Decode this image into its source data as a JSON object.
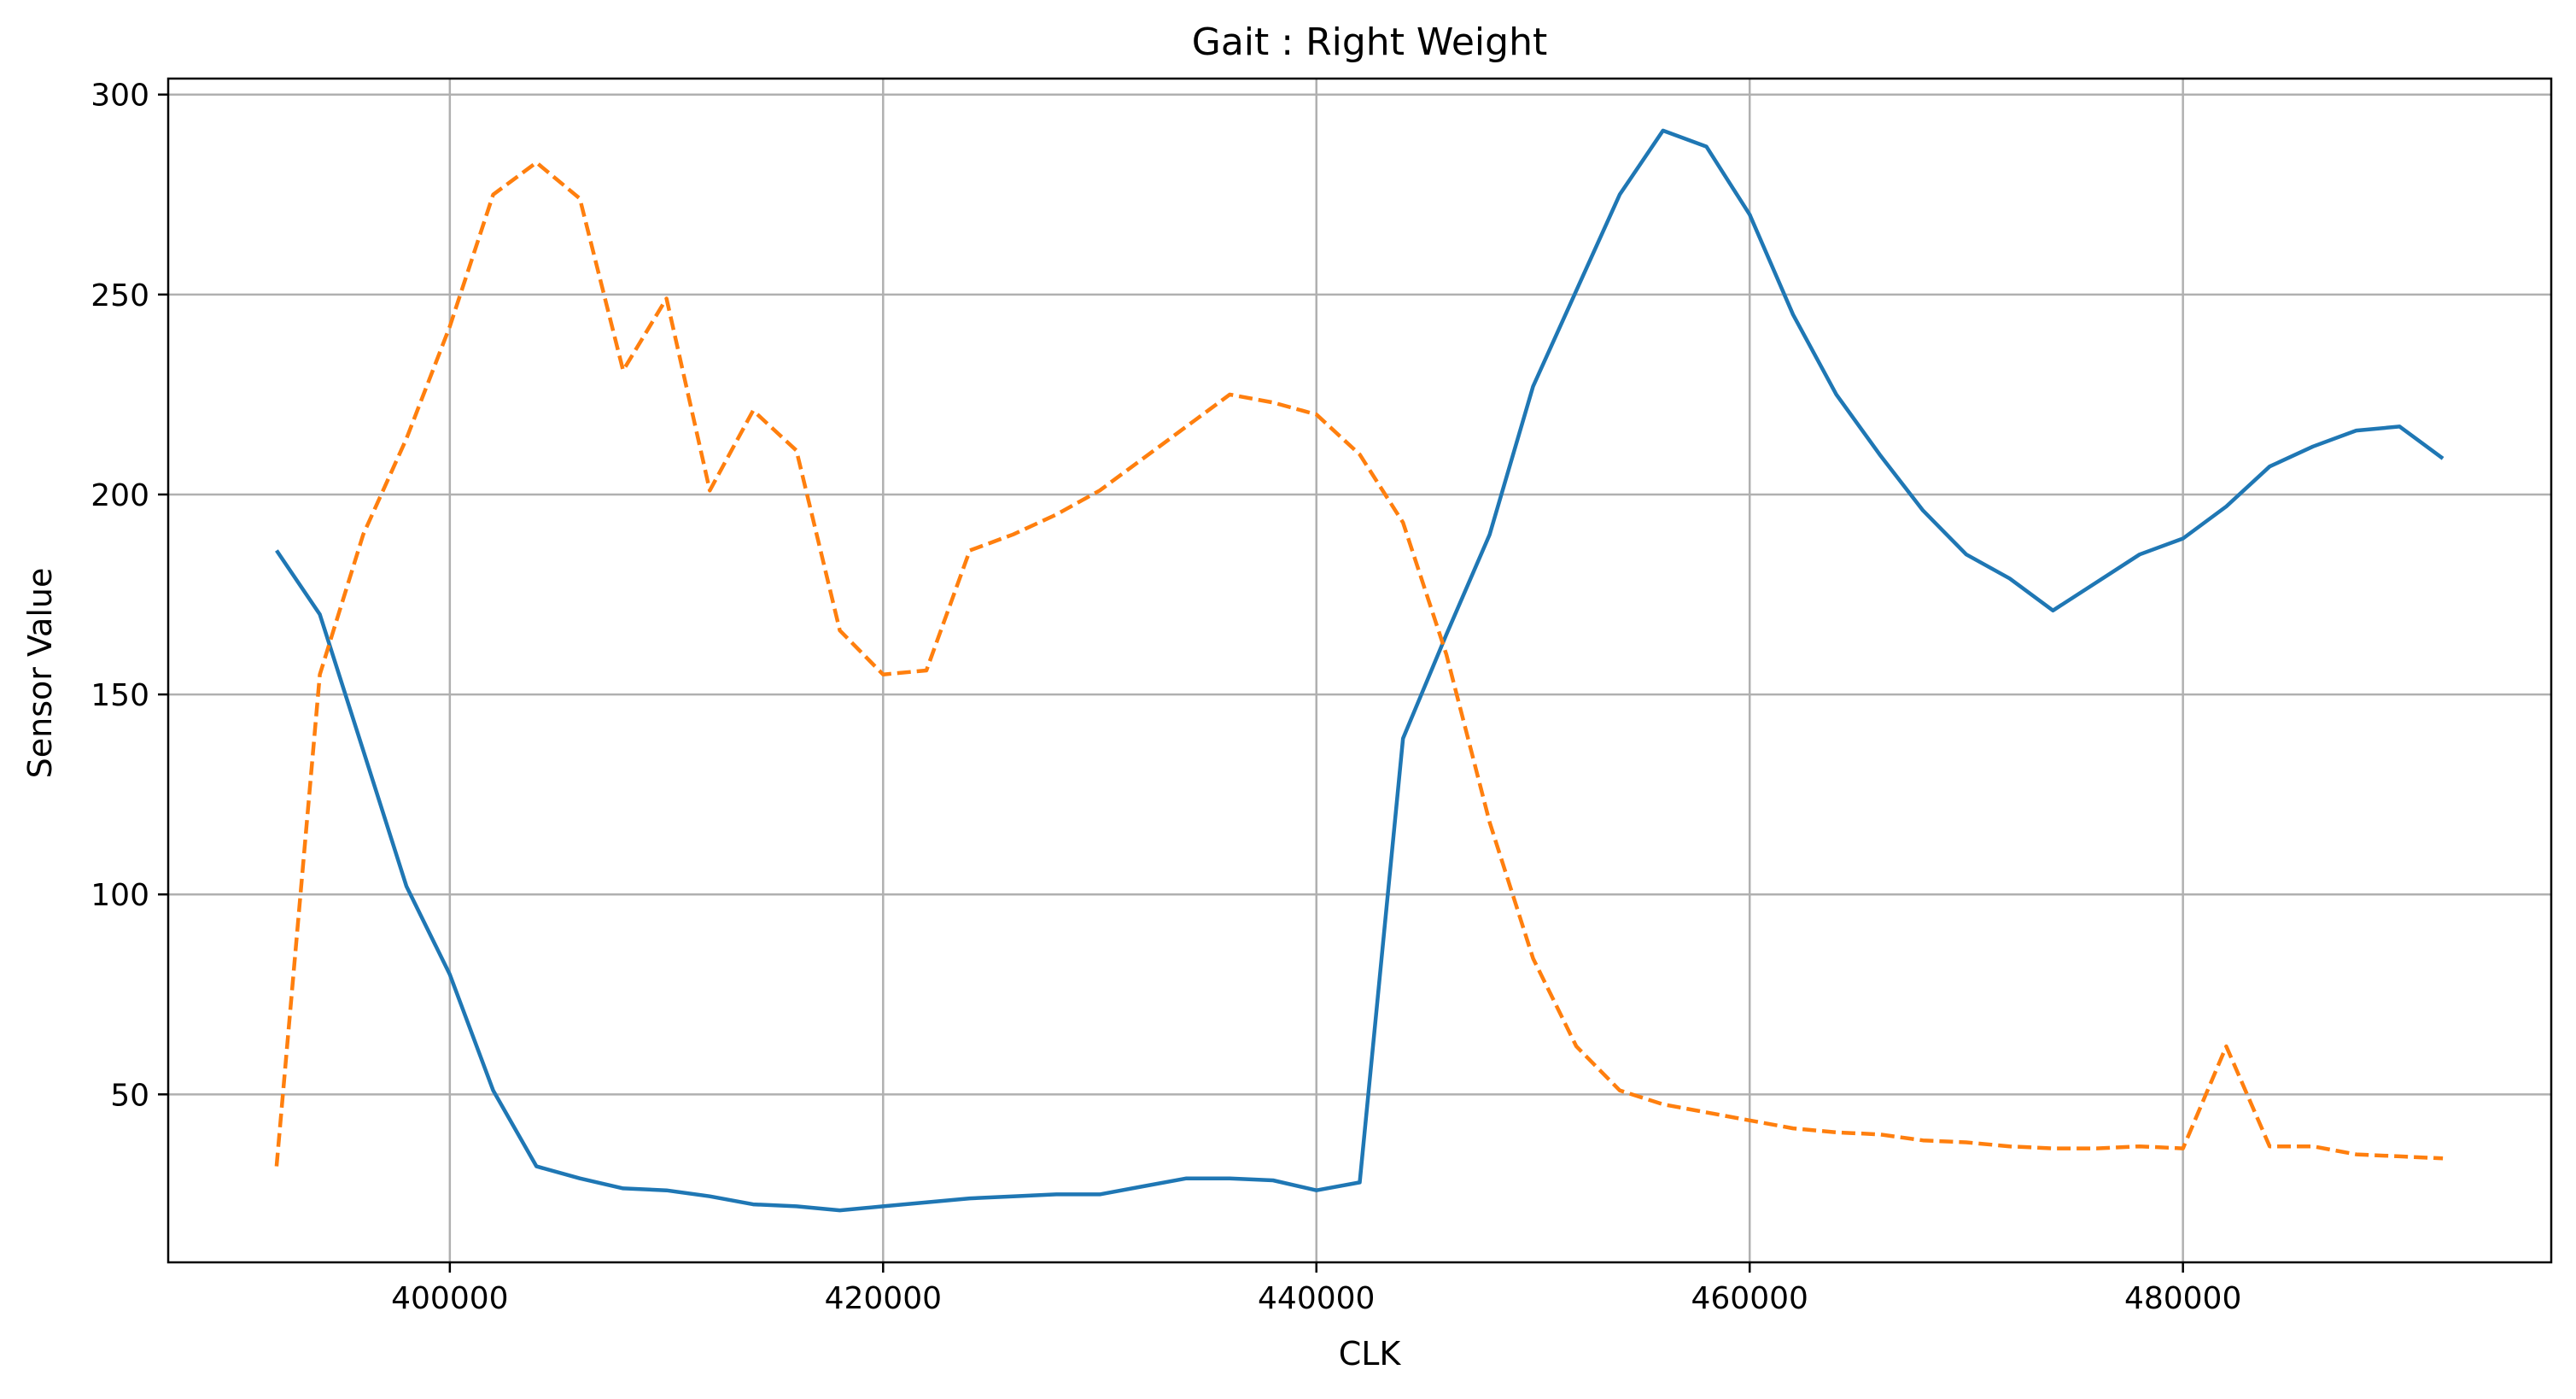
{
  "chart_data": {
    "type": "line",
    "title": "Gait : Right Weight",
    "xlabel": "CLK",
    "ylabel": "Sensor Value",
    "xlim": [
      387000,
      497000
    ],
    "ylim": [
      8,
      304
    ],
    "grid": true,
    "x_ticks": [
      400000,
      420000,
      440000,
      460000,
      480000
    ],
    "y_ticks": [
      50,
      100,
      150,
      200,
      250,
      300
    ],
    "series": [
      {
        "color": "#1f77b4",
        "style": "solid",
        "x": [
          392000,
          394000,
          396000,
          398000,
          400000,
          402000,
          404000,
          406000,
          408000,
          410000,
          412000,
          414000,
          416000,
          418000,
          420000,
          422000,
          424000,
          426000,
          428000,
          430000,
          432000,
          434000,
          436000,
          438000,
          440000,
          442000,
          444000,
          446000,
          448000,
          450000,
          452000,
          454000,
          456000,
          458000,
          460000,
          462000,
          464000,
          466000,
          468000,
          470000,
          472000,
          474000,
          476000,
          478000,
          480000,
          482000,
          484000,
          486000,
          488000,
          490000,
          492000
        ],
        "y": [
          186,
          170,
          136,
          102,
          80,
          51,
          32,
          29,
          26.5,
          26,
          24.5,
          22.5,
          22,
          21,
          22,
          23,
          24,
          24.5,
          25,
          25,
          27,
          29,
          29,
          28.5,
          26,
          28,
          139,
          165,
          190,
          227,
          251,
          275,
          291,
          287,
          270,
          245,
          225,
          210,
          196,
          185,
          179,
          171,
          178,
          185,
          189,
          197,
          207,
          212,
          216,
          217,
          209
        ]
      },
      {
        "color": "#ff7f0e",
        "style": "dashed",
        "x": [
          392000,
          394000,
          396000,
          398000,
          400000,
          402000,
          404000,
          406000,
          408000,
          410000,
          412000,
          414000,
          416000,
          418000,
          420000,
          422000,
          424000,
          426000,
          428000,
          430000,
          432000,
          434000,
          436000,
          438000,
          440000,
          442000,
          444000,
          446000,
          448000,
          450000,
          452000,
          454000,
          456000,
          458000,
          460000,
          462000,
          464000,
          466000,
          468000,
          470000,
          472000,
          474000,
          476000,
          478000,
          480000,
          482000,
          484000,
          486000,
          488000,
          490000,
          492000
        ],
        "y": [
          32,
          155,
          190,
          214,
          242,
          275,
          283,
          274,
          231,
          249,
          201,
          221,
          211,
          166,
          155,
          156,
          186,
          190,
          195,
          201,
          209,
          217,
          225,
          223,
          220,
          210,
          193,
          160,
          118,
          84,
          62,
          51,
          47.5,
          45.5,
          43.5,
          41.5,
          40.5,
          40,
          38.5,
          38,
          37,
          36.5,
          36.5,
          37,
          36.5,
          62,
          37,
          37,
          35,
          34.5,
          34
        ]
      }
    ]
  }
}
